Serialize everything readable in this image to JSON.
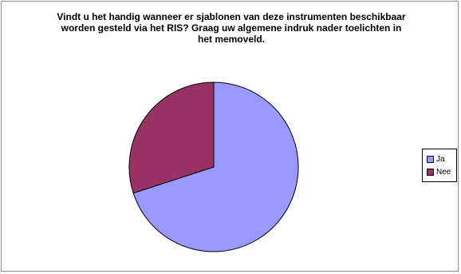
{
  "chart_data": {
    "type": "pie",
    "title_lines": [
      "Vindt u het handig wanneer er sjablonen van deze instrumenten beschikbaar",
      "worden gesteld via het RIS? Graag uw algemene indruk nader toelichten in",
      "het memoveld."
    ],
    "categories": [
      "Ja",
      "Nee"
    ],
    "values": [
      70,
      30
    ],
    "colors": [
      "#9999ff",
      "#993366"
    ],
    "legend": "right",
    "start_angle_deg": 0,
    "direction": "clockwise"
  }
}
